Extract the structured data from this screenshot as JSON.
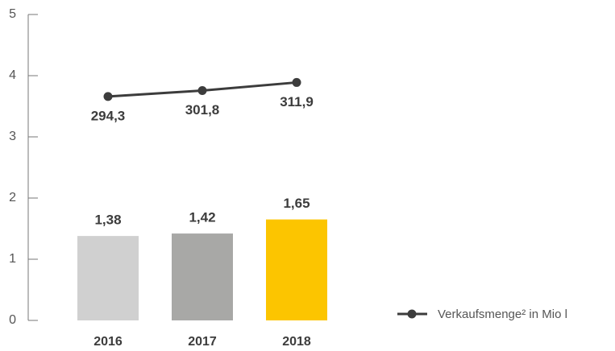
{
  "chart_data": {
    "type": "bar-line",
    "categories": [
      "2016",
      "2017",
      "2018"
    ],
    "series": [
      {
        "type": "bar",
        "colors": [
          "#d0d0d0",
          "#a8a8a6",
          "#fcc500"
        ],
        "values": [
          1.38,
          1.42,
          1.65
        ],
        "value_labels": [
          "1,38",
          "1,42",
          "1,65"
        ]
      },
      {
        "type": "line",
        "name": "Verkaufsmenge² in Mio l",
        "color": "#3c3c3c",
        "axis": "y2",
        "values": [
          294.3,
          301.8,
          311.9
        ],
        "value_labels": [
          "294,3",
          "301,8",
          "311,9"
        ]
      }
    ],
    "ylim": [
      0,
      5
    ],
    "yticks": [
      0,
      1,
      2,
      3,
      4,
      5
    ],
    "y2lim": [
      14,
      397
    ],
    "legend": "bottom-right"
  }
}
